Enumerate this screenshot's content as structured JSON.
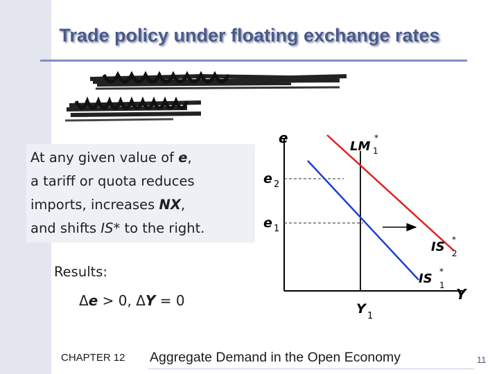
{
  "slide": {
    "title": "Trade policy under floating exchange rates",
    "page_number": "11"
  },
  "note": {
    "line1_pre": "At any given value of ",
    "line1_var": "e",
    "line1_post": ",",
    "line2": "a tariff or quota reduces",
    "line3_pre": "imports, increases ",
    "line3_var": "NX",
    "line3_post": ",",
    "line4_pre": "and shifts ",
    "line4_var": "IS*",
    "line4_post": " to the right."
  },
  "results": {
    "label": "Results:",
    "e_sym": "e",
    "e_tail": " > 0,  ",
    "y_sym": "Y",
    "y_tail": " = 0",
    "delta": "Δ"
  },
  "diagram": {
    "y_axis_label": "e",
    "x_axis_label": "Y",
    "tick_e2_base": "e",
    "tick_e2_sub": "2",
    "tick_e1_base": "e",
    "tick_e1_sub": "1",
    "tick_y1_base": "Y",
    "tick_y1_sub": "1",
    "lm_base": "LM",
    "lm_sup": "*",
    "lm_sub": "1",
    "is2_base": "IS",
    "is2_sup": "*",
    "is2_sub": "2",
    "is1_base": "IS",
    "is1_sup": "*",
    "is1_sub": "1",
    "colors": {
      "lm": "#e0201c",
      "is": "#1c3fd0",
      "axis": "#000000",
      "guide": "#555555"
    }
  },
  "footer": {
    "chapter": "CHAPTER 12",
    "title": "Aggregate Demand in the Open Economy"
  }
}
